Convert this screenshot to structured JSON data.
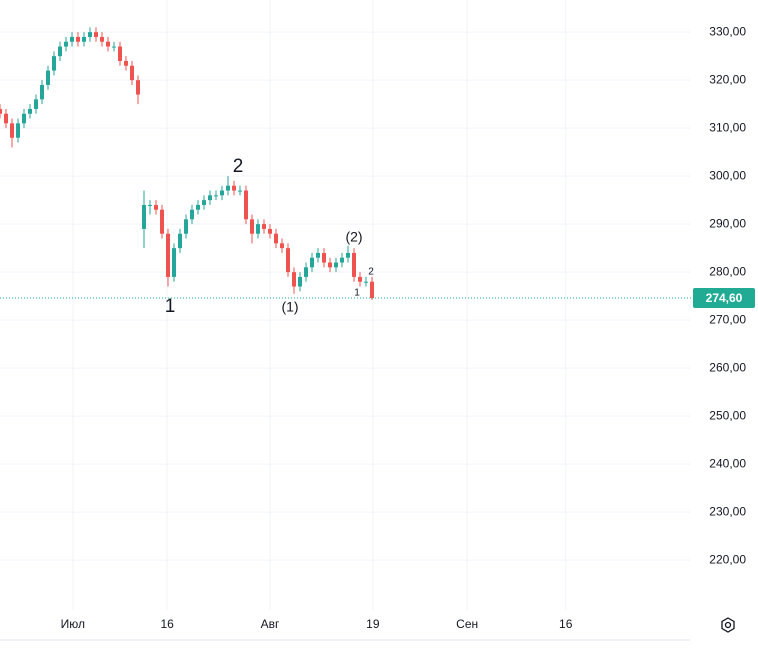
{
  "chart_data": {
    "type": "candlestick",
    "x": [
      -8.5,
      -7.8,
      -7.1,
      -6.4,
      -5.7,
      -5.0,
      -4.3,
      -3.6,
      -2.9,
      -2.2,
      -1.5,
      -0.8,
      -0.1,
      0.6,
      1.3,
      2.0,
      2.7,
      3.4,
      4.1,
      4.8,
      5.5,
      6.2,
      6.9,
      7.6,
      8.3,
      9.0,
      9.7,
      10.4,
      11.1,
      11.8,
      12.5,
      13.2,
      13.9,
      14.6,
      15.3,
      16.0,
      16.7,
      17.4,
      18.1,
      18.8,
      19.5,
      20.2,
      20.9,
      21.6,
      22.3,
      23.0,
      23.7,
      24.4,
      25.1,
      25.8,
      26.5,
      27.2,
      27.9,
      28.6,
      29.3,
      30.0,
      30.7,
      31.4,
      32.1,
      32.8,
      33.5,
      34.2,
      34.9
    ],
    "open": [
      314,
      313,
      311,
      308,
      311,
      313,
      314,
      316,
      319,
      322,
      325,
      327,
      328,
      329,
      328,
      329,
      330,
      329,
      328,
      327,
      327,
      324,
      323,
      320,
      289,
      294,
      294,
      293,
      288,
      279,
      285,
      288,
      291,
      293,
      294,
      295,
      296,
      296,
      297,
      298,
      297,
      297,
      291,
      288,
      290,
      289,
      288,
      286,
      285,
      280,
      277,
      279,
      281,
      283,
      284,
      282,
      281,
      282,
      283,
      284,
      279,
      278,
      278
    ],
    "high": [
      315,
      314,
      312,
      312,
      314,
      315,
      317,
      320,
      323,
      326,
      328,
      329,
      330,
      330,
      330,
      331,
      331,
      330,
      329,
      328,
      328,
      325,
      324,
      321,
      297,
      295,
      295,
      294,
      289,
      286,
      289,
      292,
      294,
      295,
      296,
      297,
      297,
      298,
      300,
      299,
      298,
      298,
      292,
      291,
      291,
      290,
      289,
      287,
      286,
      281,
      280,
      282,
      284,
      285,
      285,
      283,
      283,
      284,
      285.5,
      285,
      280,
      279,
      279
    ],
    "low": [
      312,
      310,
      306,
      307,
      310,
      312,
      313,
      315,
      318,
      321,
      324,
      326,
      327,
      327,
      327,
      328,
      328,
      327,
      326,
      326,
      323,
      322,
      319,
      315,
      285,
      292,
      292,
      287,
      277,
      278,
      284,
      287,
      290,
      292,
      293,
      294,
      295,
      295,
      296,
      296,
      296,
      290,
      286,
      287,
      288,
      287,
      285,
      284,
      279,
      275.5,
      276,
      278,
      280,
      282,
      281,
      280,
      280,
      281,
      282,
      278,
      277,
      277,
      274.2
    ],
    "close": [
      313,
      311,
      308,
      311,
      313,
      314,
      316,
      319,
      322,
      325,
      327,
      328,
      329,
      328,
      329,
      330,
      329,
      328,
      327,
      327,
      324,
      323,
      320,
      317,
      294,
      294,
      293,
      288,
      279,
      285,
      288,
      291,
      293,
      294,
      295,
      296,
      296,
      297,
      298,
      297,
      297,
      291,
      288,
      290,
      289,
      288,
      286,
      285,
      280,
      277,
      279,
      281,
      283,
      284,
      282,
      281,
      282,
      283,
      284,
      279,
      278,
      278,
      274.6
    ],
    "up_color": "#26a69a",
    "down_color": "#ef5350",
    "xlim": [
      -8.5,
      72
    ],
    "ylim": [
      209.6,
      336.7
    ],
    "xticks": [
      {
        "value": 0,
        "label": "Июл"
      },
      {
        "value": 11,
        "label": "16"
      },
      {
        "value": 23,
        "label": "Авг"
      },
      {
        "value": 35,
        "label": "19"
      },
      {
        "value": 46,
        "label": "Сен"
      },
      {
        "value": 57.5,
        "label": "16"
      }
    ],
    "yticks": [
      {
        "value": 220,
        "label": "220,00"
      },
      {
        "value": 230,
        "label": "230,00"
      },
      {
        "value": 240,
        "label": "240,00"
      },
      {
        "value": 250,
        "label": "250,00"
      },
      {
        "value": 260,
        "label": "260,00"
      },
      {
        "value": 270,
        "label": "270,00"
      },
      {
        "value": 280,
        "label": "280,00"
      },
      {
        "value": 290,
        "label": "290,00"
      },
      {
        "value": 300,
        "label": "300,00"
      },
      {
        "value": 310,
        "label": "310,00"
      },
      {
        "value": 320,
        "label": "320,00"
      },
      {
        "value": 330,
        "label": "330,00"
      }
    ],
    "last_price": {
      "value": 274.6,
      "label": "274,60"
    },
    "last_price_color": "#22ab94",
    "grid": true,
    "annotations": [
      "1",
      "2",
      "(1)",
      "(2)",
      "1",
      "2"
    ]
  }
}
